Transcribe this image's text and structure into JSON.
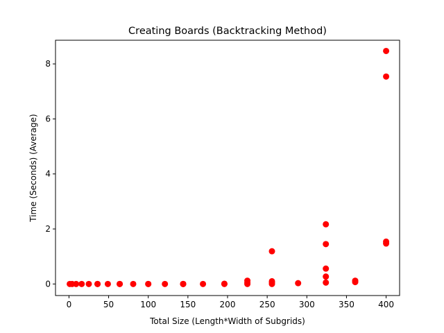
{
  "chart_data": {
    "type": "scatter",
    "title": "Creating Boards (Backtracking Method)",
    "xlabel": "Total Size (Length*Width of Subgrids)",
    "ylabel": "Time (Seconds) (Average)",
    "xlim": [
      -17,
      417
    ],
    "ylim": [
      -0.42,
      8.86
    ],
    "xticks": [
      0,
      50,
      100,
      150,
      200,
      250,
      300,
      350,
      400
    ],
    "yticks": [
      0,
      2,
      4,
      6,
      8
    ],
    "grid": false,
    "legend": "none",
    "marker_color": "#ff0000",
    "series": [
      {
        "points": [
          [
            1,
            0.0
          ],
          [
            4,
            0.0
          ],
          [
            9,
            0.0
          ],
          [
            16,
            0.0
          ],
          [
            25,
            0.0
          ],
          [
            36,
            0.0
          ],
          [
            36,
            0.0
          ],
          [
            49,
            0.0
          ],
          [
            64,
            0.0
          ],
          [
            64,
            0.0
          ],
          [
            81,
            0.0
          ],
          [
            100,
            0.0
          ],
          [
            100,
            0.0
          ],
          [
            121,
            0.0
          ],
          [
            144,
            0.0
          ],
          [
            144,
            0.0
          ],
          [
            144,
            0.0
          ],
          [
            169,
            0.0
          ],
          [
            196,
            0.0
          ],
          [
            196,
            0.01
          ],
          [
            225,
            0.0
          ],
          [
            225,
            0.05
          ],
          [
            225,
            0.12
          ],
          [
            256,
            0.0
          ],
          [
            256,
            0.05
          ],
          [
            256,
            0.1
          ],
          [
            256,
            1.19
          ],
          [
            289,
            0.03
          ],
          [
            324,
            0.05
          ],
          [
            324,
            0.27
          ],
          [
            324,
            0.56
          ],
          [
            324,
            1.45
          ],
          [
            324,
            2.17
          ],
          [
            361,
            0.07
          ],
          [
            361,
            0.12
          ],
          [
            400,
            1.47
          ],
          [
            400,
            1.54
          ],
          [
            400,
            7.54
          ],
          [
            400,
            8.47
          ]
        ]
      }
    ]
  }
}
